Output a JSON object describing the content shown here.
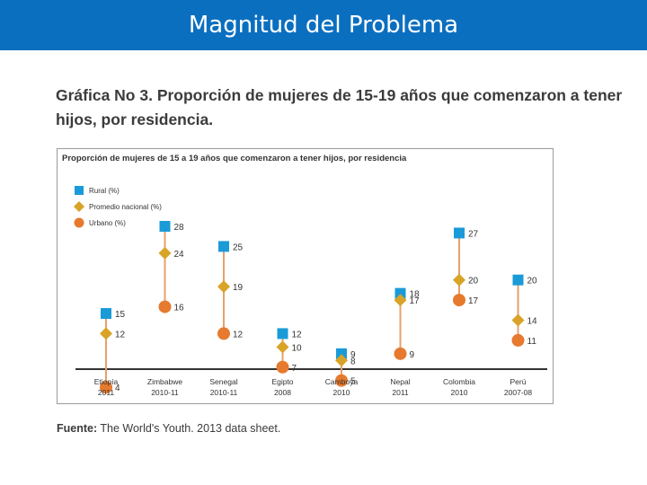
{
  "header": {
    "title": "Magnitud del Problema"
  },
  "caption": "Gráfica No 3. Proporción de mujeres de 15-19 años que comenzaron a tener hijos, por residencia.",
  "source": {
    "label": "Fuente:",
    "text": " The World's Youth. 2013 data sheet."
  },
  "colors": {
    "header": "#0b6fc0",
    "rural": "#1a9bd8",
    "national": "#d9a328",
    "urban": "#e67a2e",
    "stem": "#e8a06a",
    "axis": "#333333"
  },
  "chart_data": {
    "type": "scatter",
    "title": "Proporción de mujeres de 15 a 19 años que comenzaron a tener hijos, por residencia",
    "legend_position": "top-left",
    "ylim": [
      0,
      30
    ],
    "categories": [
      {
        "name": "Etiopía",
        "year": "2011"
      },
      {
        "name": "Zimbabwe",
        "year": "2010-11"
      },
      {
        "name": "Senegal",
        "year": "2010-11"
      },
      {
        "name": "Egipto",
        "year": "2008"
      },
      {
        "name": "Camboya",
        "year": "2010"
      },
      {
        "name": "Nepal",
        "year": "2011"
      },
      {
        "name": "Colombia",
        "year": "2010"
      },
      {
        "name": "Perú",
        "year": "2007-08"
      }
    ],
    "series": [
      {
        "key": "rural",
        "name": "Rural (%)",
        "marker": "square",
        "values": [
          15,
          28,
          25,
          12,
          9,
          18,
          27,
          20
        ]
      },
      {
        "key": "national",
        "name": "Promedio nacional (%)",
        "marker": "diamond",
        "values": [
          12,
          24,
          19,
          10,
          8,
          17,
          20,
          14
        ]
      },
      {
        "key": "urban",
        "name": "Urbano (%)",
        "marker": "circle",
        "values": [
          4,
          16,
          12,
          7,
          5,
          9,
          17,
          11
        ]
      }
    ]
  }
}
